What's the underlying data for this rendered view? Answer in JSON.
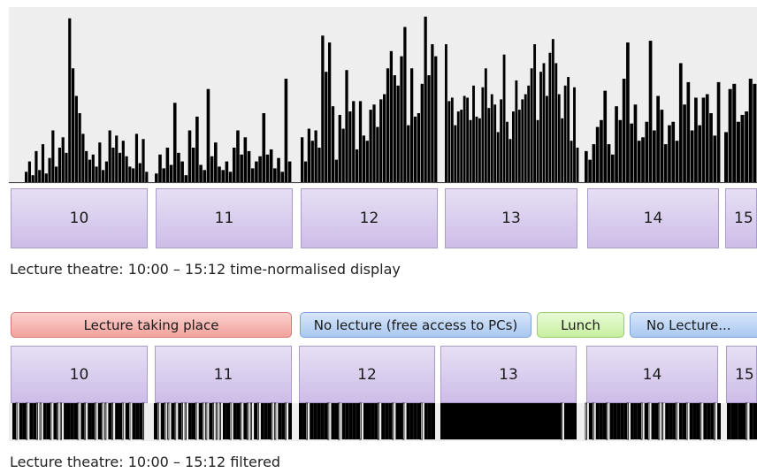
{
  "chart_data": [
    {
      "type": "bar",
      "title": "",
      "caption": "Lecture theatre: 10:00 – 15:12 time-normalised display",
      "hours": [
        "10",
        "11",
        "12",
        "13",
        "14",
        "15"
      ],
      "ylim": [
        0,
        100
      ],
      "values": {
        "10": [
          6,
          12,
          4,
          18,
          7,
          22,
          5,
          14,
          30,
          9,
          20,
          26,
          17,
          95,
          66,
          50,
          40,
          28,
          18,
          13,
          16,
          9,
          23,
          7,
          12,
          30,
          20,
          27,
          17,
          24,
          15,
          9,
          8,
          28,
          11,
          25,
          6
        ],
        "11": [
          5,
          16,
          8,
          20,
          10,
          46,
          17,
          12,
          4,
          30,
          20,
          38,
          10,
          7,
          54,
          15,
          23,
          9,
          7,
          12,
          6,
          20,
          30,
          16,
          26,
          18,
          8,
          12,
          15,
          40,
          16,
          19,
          8,
          14,
          6,
          60,
          12
        ],
        "12": [
          26,
          12,
          31,
          24,
          30,
          20,
          85,
          64,
          81,
          44,
          13,
          39,
          31,
          65,
          41,
          47,
          19,
          47,
          27,
          24,
          42,
          45,
          32,
          48,
          51,
          66,
          76,
          62,
          56,
          73,
          90,
          33,
          66,
          38,
          40,
          57,
          96,
          62,
          80,
          73
        ],
        "13": [
          80,
          47,
          49,
          33,
          41,
          42,
          50,
          49,
          36,
          56,
          38,
          37,
          55,
          66,
          43,
          51,
          45,
          29,
          48,
          74,
          35,
          25,
          41,
          59,
          42,
          48,
          51,
          56,
          66,
          80,
          36,
          64,
          69,
          50,
          75,
          83,
          69,
          51,
          37,
          56,
          61,
          24,
          55,
          20
        ],
        "14": [
          18,
          13,
          22,
          32,
          36,
          53,
          22,
          16,
          44,
          36,
          60,
          81,
          34,
          45,
          24,
          26,
          35,
          82,
          30,
          50,
          42,
          22,
          33,
          35,
          24,
          69,
          45,
          58,
          30,
          49,
          33,
          49,
          51,
          40,
          27,
          58
        ],
        "15": [
          29,
          54,
          57,
          35,
          39,
          41,
          60,
          57
        ]
      }
    },
    {
      "type": "bar",
      "title": "",
      "caption": "Lecture theatre: 10:00 – 15:12 filtered",
      "hours": [
        "10",
        "11",
        "12",
        "13",
        "14",
        "15"
      ],
      "annotations": [
        {
          "label": "Lecture taking place",
          "color": "#f2a29c"
        },
        {
          "label": "No lecture (free access to PCs)",
          "color": "#a9c8f0"
        },
        {
          "label": "Lunch",
          "color": "#c8ef9f"
        },
        {
          "label": "No Lecture...",
          "color": "#a9c8f0"
        }
      ],
      "on_off": {
        "10": [
          1,
          0,
          1,
          1,
          0,
          1,
          1,
          0,
          0,
          1,
          1,
          0,
          1,
          0,
          0,
          1,
          1,
          1,
          1,
          0,
          1,
          0,
          1,
          1,
          0,
          1,
          0,
          0,
          1,
          0,
          1,
          1,
          0,
          1,
          0,
          1,
          1,
          1,
          0
        ],
        "11": [
          1,
          0,
          1,
          0,
          0,
          1,
          0,
          1,
          0,
          0,
          1,
          1,
          0,
          1,
          0,
          0,
          1,
          0,
          0,
          0,
          1,
          1,
          0,
          1,
          1,
          0,
          1,
          0,
          0,
          1,
          0,
          1,
          1,
          1,
          0,
          0,
          1,
          1,
          0,
          1
        ],
        "12": [
          1,
          1,
          0,
          1,
          1,
          1,
          1,
          1,
          0,
          1,
          1,
          0,
          1,
          1,
          1,
          1,
          1,
          0,
          1,
          1,
          1,
          1,
          0,
          1,
          1,
          1,
          0,
          1,
          1,
          0,
          1,
          1,
          1,
          1,
          0,
          1,
          1,
          1
        ],
        "13": [
          1,
          1,
          1,
          1,
          1,
          1,
          1,
          1,
          1,
          1,
          1,
          1,
          1,
          1,
          1,
          1,
          1,
          1,
          1,
          1,
          1,
          1,
          1,
          1,
          1,
          1,
          1,
          1,
          1,
          1,
          1,
          1,
          1,
          1,
          1,
          1,
          1,
          1,
          1,
          0,
          1,
          1,
          1,
          1
        ],
        "14": [
          0,
          1,
          0,
          1,
          1,
          1,
          0,
          1,
          1,
          1,
          1,
          1,
          0,
          1,
          1,
          1,
          0,
          1,
          0,
          1,
          1,
          0,
          0,
          1,
          1,
          1,
          0,
          1,
          1,
          0,
          1,
          1,
          1,
          0,
          1,
          1,
          1,
          0,
          1
        ],
        "15": [
          1,
          1,
          1,
          1,
          1,
          0,
          1,
          1
        ]
      }
    }
  ]
}
